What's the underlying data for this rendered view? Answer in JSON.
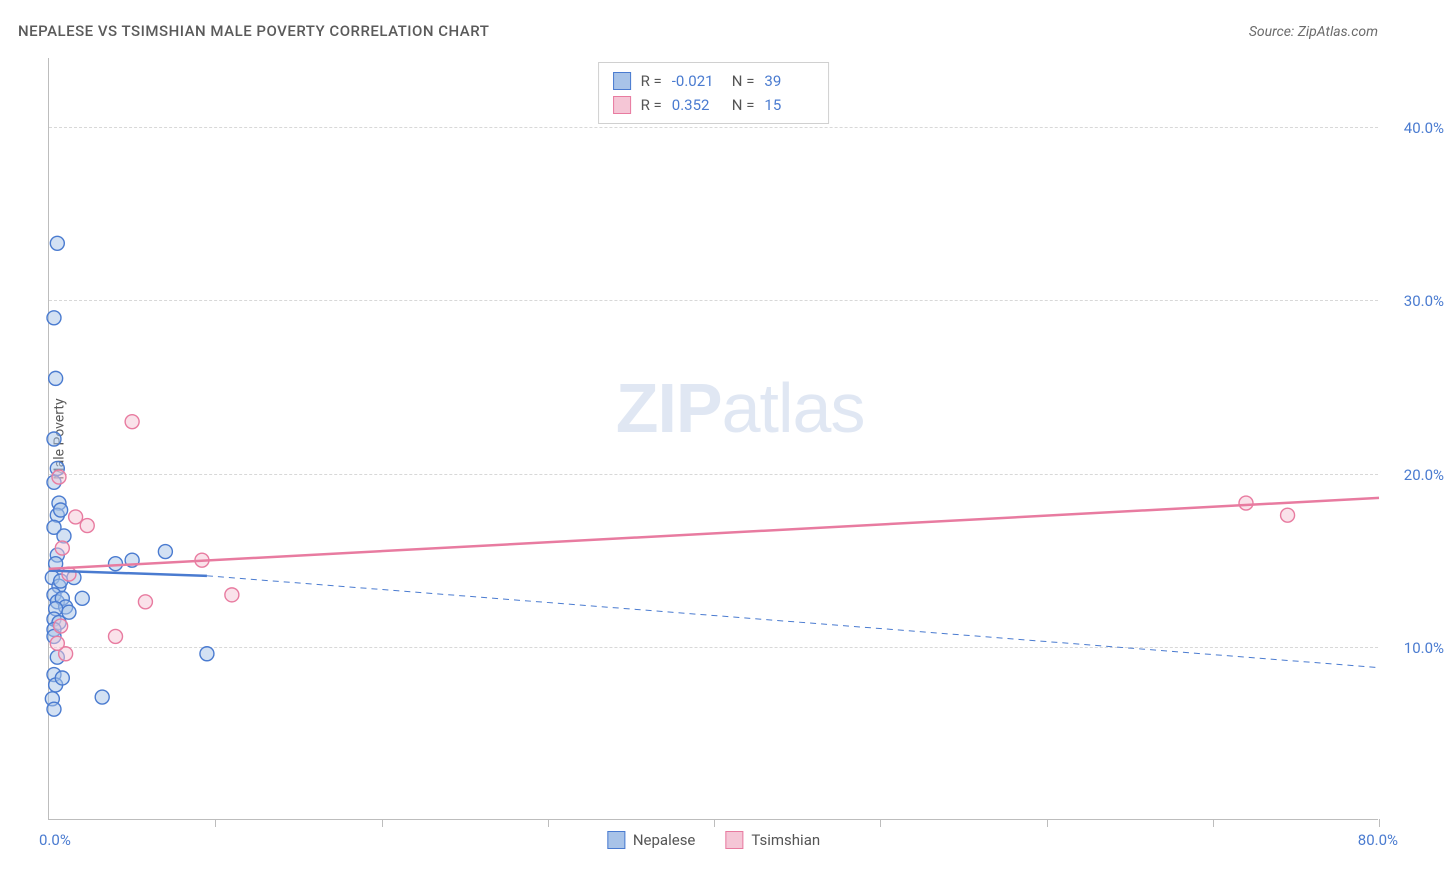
{
  "title": "NEPALESE VS TSIMSHIAN MALE POVERTY CORRELATION CHART",
  "source": "Source: ZipAtlas.com",
  "y_axis_title": "Male Poverty",
  "watermark_bold": "ZIP",
  "watermark_light": "atlas",
  "chart": {
    "type": "scatter",
    "xlim": [
      0,
      80
    ],
    "ylim": [
      0,
      44
    ],
    "x_min_label": "0.0%",
    "x_max_label": "80.0%",
    "x_tick_positions": [
      10,
      20,
      30,
      40,
      50,
      60,
      70,
      80
    ],
    "y_gridlines": [
      {
        "value": 10,
        "label": "10.0%"
      },
      {
        "value": 20,
        "label": "20.0%"
      },
      {
        "value": 30,
        "label": "30.0%"
      },
      {
        "value": 40,
        "label": "40.0%"
      }
    ],
    "background_color": "#ffffff",
    "grid_color": "#d8d8d8",
    "axis_color": "#bdbdbd",
    "marker_radius": 7,
    "marker_stroke_width": 1.4,
    "marker_fill_opacity": 0.25,
    "series": [
      {
        "name": "Nepalese",
        "color_stroke": "#4a7bd0",
        "color_fill": "#a8c3e8",
        "r_label": "R =",
        "r_value": "-0.021",
        "n_label": "N =",
        "n_value": "39",
        "trendline": {
          "x1": 0,
          "y1": 14.4,
          "x2": 9.5,
          "y2": 14.1,
          "solid": true,
          "width": 2.5
        },
        "trendline_ext": {
          "x1": 9.5,
          "y1": 14.1,
          "x2": 80,
          "y2": 8.8,
          "solid": false,
          "width": 1
        },
        "points": [
          [
            0.3,
            22.0
          ],
          [
            0.3,
            29.0
          ],
          [
            0.5,
            33.3
          ],
          [
            0.4,
            25.5
          ],
          [
            0.5,
            20.3
          ],
          [
            0.3,
            19.5
          ],
          [
            0.6,
            18.3
          ],
          [
            0.5,
            17.6
          ],
          [
            0.7,
            17.9
          ],
          [
            0.3,
            16.9
          ],
          [
            0.5,
            15.3
          ],
          [
            0.4,
            14.8
          ],
          [
            0.2,
            14.0
          ],
          [
            0.6,
            13.5
          ],
          [
            0.7,
            13.8
          ],
          [
            0.3,
            13.0
          ],
          [
            0.5,
            12.6
          ],
          [
            0.8,
            12.8
          ],
          [
            1.0,
            12.3
          ],
          [
            0.4,
            12.2
          ],
          [
            1.2,
            12.0
          ],
          [
            0.3,
            11.6
          ],
          [
            0.6,
            11.4
          ],
          [
            0.3,
            11.0
          ],
          [
            0.3,
            10.6
          ],
          [
            0.3,
            8.4
          ],
          [
            0.4,
            7.8
          ],
          [
            0.2,
            7.0
          ],
          [
            0.3,
            6.4
          ],
          [
            3.2,
            7.1
          ],
          [
            2.0,
            12.8
          ],
          [
            4.0,
            14.8
          ],
          [
            5.0,
            15.0
          ],
          [
            7.0,
            15.5
          ],
          [
            9.5,
            9.6
          ],
          [
            0.8,
            8.2
          ],
          [
            0.5,
            9.4
          ],
          [
            1.5,
            14.0
          ],
          [
            0.9,
            16.4
          ]
        ]
      },
      {
        "name": "Tsimshian",
        "color_stroke": "#e87ba0",
        "color_fill": "#f5c6d6",
        "r_label": "R =",
        "r_value": "0.352",
        "n_label": "N =",
        "n_value": "15",
        "trendline": {
          "x1": 0,
          "y1": 14.5,
          "x2": 80,
          "y2": 18.6,
          "solid": true,
          "width": 2.5
        },
        "points": [
          [
            0.6,
            19.8
          ],
          [
            1.6,
            17.5
          ],
          [
            2.3,
            17.0
          ],
          [
            5.0,
            23.0
          ],
          [
            5.8,
            12.6
          ],
          [
            9.2,
            15.0
          ],
          [
            11.0,
            13.0
          ],
          [
            4.0,
            10.6
          ],
          [
            1.0,
            9.6
          ],
          [
            0.7,
            11.2
          ],
          [
            0.5,
            10.2
          ],
          [
            1.2,
            14.2
          ],
          [
            0.8,
            15.7
          ],
          [
            72.0,
            18.3
          ],
          [
            74.5,
            17.6
          ]
        ]
      }
    ]
  },
  "legend_bottom": [
    {
      "label": "Nepalese",
      "stroke": "#4a7bd0",
      "fill": "#a8c3e8"
    },
    {
      "label": "Tsimshian",
      "stroke": "#e87ba0",
      "fill": "#f5c6d6"
    }
  ]
}
